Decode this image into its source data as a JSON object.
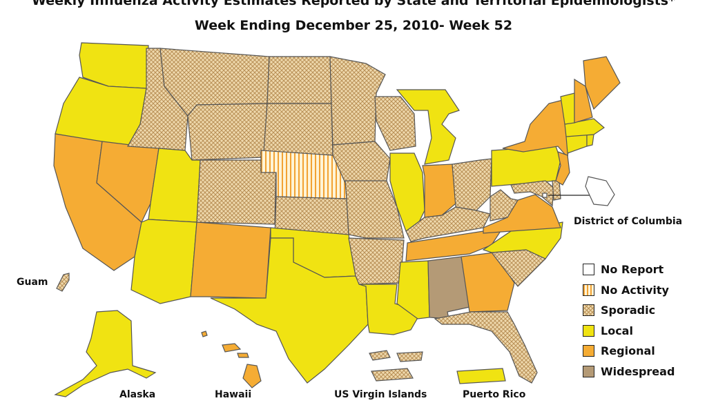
{
  "header": {
    "title": "Weekly Influenza Activity Estimates Reported by State and Territorial Epidemiologists*",
    "subtitle": "Week Ending December 25, 2010- Week 52"
  },
  "colors": {
    "no_report": "#ffffff",
    "no_activity_bg": "#fff4d6",
    "no_activity_stripe": "#f2a233",
    "sporadic_bg": "#efd9ad",
    "sporadic_hatch": "#b88f55",
    "local": "#f0e312",
    "regional": "#f5ac34",
    "widespread": "#b49a76",
    "border": "#555555"
  },
  "labels": {
    "dc": "District of Columbia",
    "guam": "Guam",
    "alaska": "Alaska",
    "hawaii": "Hawaii",
    "usvi": "US Virgin Islands",
    "puerto_rico": "Puerto Rico"
  },
  "legend": [
    {
      "label": "No Report",
      "level": "no_report"
    },
    {
      "label": "No Activity",
      "level": "no_activity"
    },
    {
      "label": "Sporadic",
      "level": "sporadic"
    },
    {
      "label": "Local",
      "level": "local"
    },
    {
      "label": "Regional",
      "level": "regional"
    },
    {
      "label": "Widespread",
      "level": "widespread"
    }
  ],
  "activity": {
    "Washington": "local",
    "Oregon": "local",
    "California": "regional",
    "Nevada": "regional",
    "Idaho": "sporadic",
    "Montana": "sporadic",
    "Wyoming": "sporadic",
    "Utah": "local",
    "Arizona": "local",
    "Colorado": "sporadic",
    "New Mexico": "regional",
    "North Dakota": "sporadic",
    "South Dakota": "sporadic",
    "Nebraska": "no_activity",
    "Kansas": "sporadic",
    "Oklahoma": "local",
    "Texas": "local",
    "Minnesota": "sporadic",
    "Iowa": "sporadic",
    "Missouri": "sporadic",
    "Arkansas": "sporadic",
    "Louisiana": "local",
    "Wisconsin": "sporadic",
    "Illinois": "local",
    "Michigan": "local",
    "Indiana": "regional",
    "Ohio": "sporadic",
    "Kentucky": "sporadic",
    "Tennessee": "regional",
    "Mississippi": "local",
    "Alabama": "widespread",
    "Georgia": "regional",
    "Florida": "sporadic",
    "South Carolina": "sporadic",
    "North Carolina": "local",
    "Virginia": "regional",
    "West Virginia": "sporadic",
    "Pennsylvania": "local",
    "New York": "regional",
    "Maryland": "sporadic",
    "Delaware": "sporadic",
    "District of Columbia": "no_report",
    "New Jersey": "regional",
    "Connecticut": "local",
    "Rhode Island": "local",
    "Massachusetts": "local",
    "Vermont": "local",
    "New Hampshire": "regional",
    "Maine": "regional",
    "Alaska": "local",
    "Hawaii": "regional",
    "Guam": "sporadic",
    "US Virgin Islands": "sporadic",
    "Puerto Rico": "local"
  }
}
